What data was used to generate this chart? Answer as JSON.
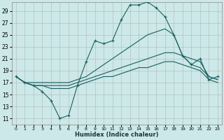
{
  "xlabel": "Humidex (Indice chaleur)",
  "bg_color": "#cce8e8",
  "grid_color": "#999999",
  "line_color": "#1a5f5f",
  "xlim": [
    -0.5,
    23.5
  ],
  "ylim": [
    10,
    30.5
  ],
  "xticks": [
    0,
    1,
    2,
    3,
    4,
    5,
    6,
    7,
    8,
    9,
    10,
    11,
    12,
    13,
    14,
    15,
    16,
    17,
    18,
    19,
    20,
    21,
    22,
    23
  ],
  "yticks": [
    11,
    13,
    15,
    17,
    19,
    21,
    23,
    25,
    27,
    29
  ],
  "lines": [
    {
      "x": [
        0,
        1,
        2,
        3,
        4,
        5,
        6,
        7,
        8,
        9,
        10,
        11,
        12,
        13,
        14,
        15,
        16,
        17,
        18,
        19,
        20,
        21,
        22,
        23
      ],
      "y": [
        18,
        17,
        16.5,
        15.5,
        14,
        11,
        11.5,
        16.5,
        20.5,
        24,
        23.5,
        24,
        27.5,
        30,
        30,
        30.5,
        29.5,
        28,
        25,
        21.5,
        20,
        21,
        17.5,
        18
      ],
      "marker": true
    },
    {
      "x": [
        0,
        1,
        2,
        3,
        4,
        5,
        6,
        7,
        8,
        9,
        10,
        11,
        12,
        13,
        14,
        15,
        16,
        17,
        18,
        19,
        20,
        21,
        22,
        23
      ],
      "y": [
        18,
        17,
        17,
        17,
        17,
        17,
        17,
        17.5,
        18,
        19,
        20,
        21,
        22,
        23,
        24,
        25,
        25.5,
        26,
        25,
        21.5,
        20,
        19.5,
        18,
        17.5
      ],
      "marker": false
    },
    {
      "x": [
        0,
        1,
        2,
        3,
        4,
        5,
        6,
        7,
        8,
        9,
        10,
        11,
        12,
        13,
        14,
        15,
        16,
        17,
        18,
        19,
        20,
        21,
        22,
        23
      ],
      "y": [
        18,
        17,
        16.5,
        16.5,
        16.5,
        16.5,
        16.5,
        17,
        17.5,
        18,
        18.5,
        19,
        19.5,
        20,
        20.5,
        21,
        21.5,
        22,
        22,
        21.5,
        21,
        20.5,
        18,
        17.5
      ],
      "marker": false
    },
    {
      "x": [
        0,
        1,
        2,
        3,
        4,
        5,
        6,
        7,
        8,
        9,
        10,
        11,
        12,
        13,
        14,
        15,
        16,
        17,
        18,
        19,
        20,
        21,
        22,
        23
      ],
      "y": [
        18,
        17,
        16.5,
        16.5,
        16,
        16,
        16,
        16.5,
        17,
        17.5,
        18,
        18,
        18.5,
        19,
        19.5,
        19.5,
        20,
        20.5,
        20.5,
        20,
        19.5,
        19,
        17.5,
        17
      ],
      "marker": false
    }
  ]
}
